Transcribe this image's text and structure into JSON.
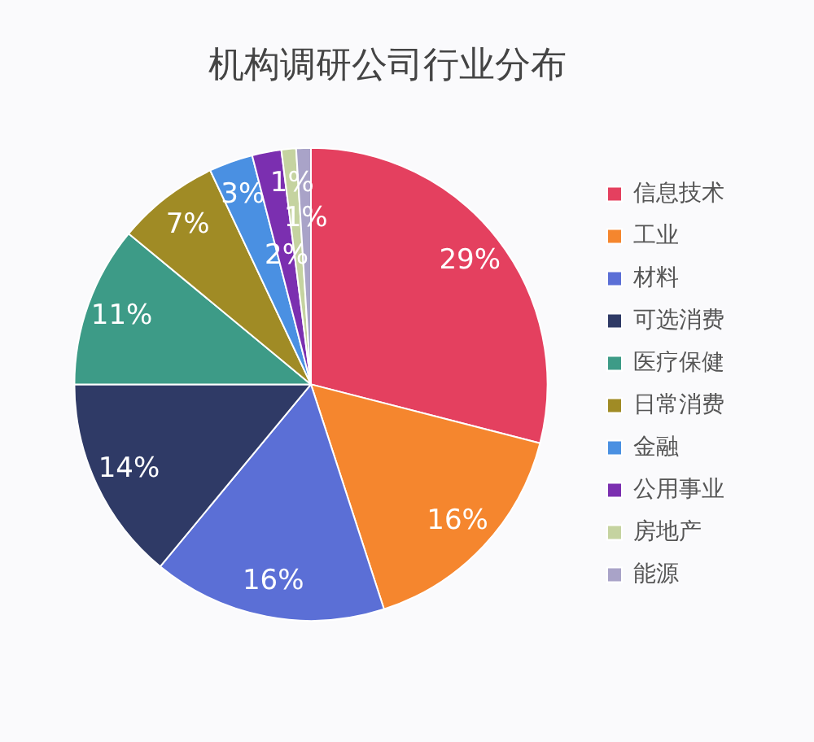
{
  "chart_data": {
    "type": "pie",
    "title": "机构调研公司行业分布",
    "categories": [
      "信息技术",
      "工业",
      "材料",
      "可选消费",
      "医疗保健",
      "日常消费",
      "金融",
      "公用事业",
      "房地产",
      "能源"
    ],
    "values": [
      29,
      16,
      16,
      14,
      11,
      7,
      3,
      2,
      1,
      1
    ],
    "colors": [
      "#e4405f",
      "#f5862e",
      "#5b6fd6",
      "#2f3a66",
      "#3d9b87",
      "#a08b25",
      "#4a90e2",
      "#7b2fb0",
      "#c5d3a0",
      "#a9a3c8"
    ],
    "value_labels": [
      "29%",
      "16%",
      "16%",
      "14%",
      "11%",
      "7%",
      "3%",
      "2%",
      "1%",
      "1%"
    ],
    "legend": "right"
  }
}
